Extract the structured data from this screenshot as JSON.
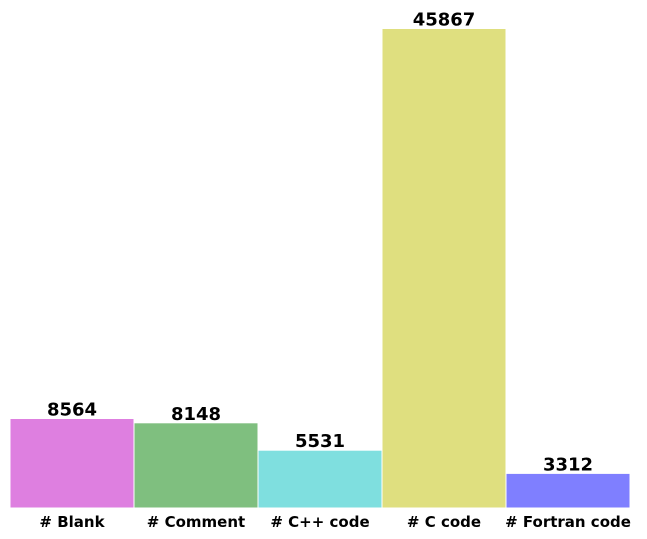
{
  "chart_data": {
    "type": "bar",
    "title": "",
    "xlabel": "",
    "ylabel": "",
    "categories": [
      "# Blank",
      "# Comment",
      "# C++ code",
      "# C code",
      "# Fortran code"
    ],
    "values": [
      8564,
      8148,
      5531,
      45867,
      3312
    ],
    "colors": [
      "#de7fe0",
      "#7fbf7f",
      "#7fdfdf",
      "#dfdf7f",
      "#7f7fff"
    ],
    "ylim": [
      0,
      48000
    ],
    "grid": false,
    "axes_visible": false,
    "bar_edge_color": "#ffffff"
  }
}
